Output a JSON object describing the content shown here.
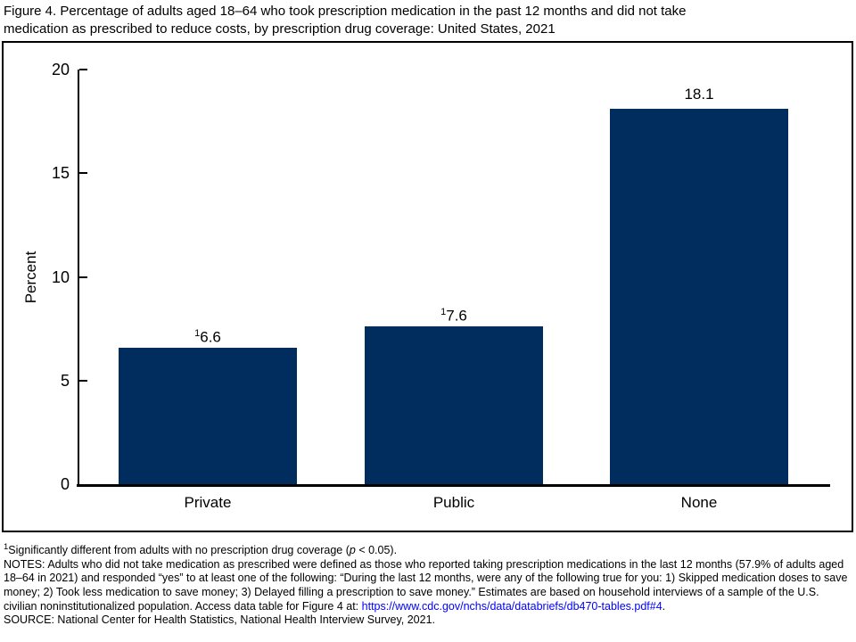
{
  "title": {
    "line1": "Figure 4. Percentage of adults aged 18–64 who took prescription medication in the past 12 months and did not take",
    "line2": "medication as prescribed to reduce costs, by prescription drug coverage: United States, 2021"
  },
  "chart_data": {
    "type": "bar",
    "title": "Figure 4. Percentage of adults aged 18–64 who took prescription medication in the past 12 months and did not take medication as prescribed to reduce costs, by prescription drug coverage: United States, 2021",
    "categories": [
      "Private",
      "Public",
      "None"
    ],
    "values": [
      6.6,
      7.6,
      18.1
    ],
    "value_labels": [
      {
        "sup": "1",
        "text": "6.6"
      },
      {
        "sup": "1",
        "text": "7.6"
      },
      {
        "sup": "",
        "text": "18.1"
      }
    ],
    "xlabel": "",
    "ylabel": "Percent",
    "ylim": [
      0,
      20
    ],
    "yticks": [
      0,
      5,
      10,
      15,
      20
    ],
    "bar_color": "#002c5e",
    "grid": false,
    "legend": null
  },
  "footnotes": {
    "sig_sup": "1",
    "sig_pre": "Significantly different from adults with no prescription drug coverage (",
    "sig_italic": "p",
    "sig_post": " < 0.05).",
    "notes": "NOTES: Adults who did not take medication as prescribed were defined as those who reported taking prescription medications in the last 12 months (57.9% of adults aged 18–64 in 2021) and responded “yes” to at least one of the following: “During the last 12 months, were any of the following true for you: 1) Skipped medication doses to save money; 2) Took less medication to save money; 3) Delayed filling a prescription to save money.” Estimates are based on household interviews of a sample of the U.S. civilian noninstitutionalized population. Access data table for Figure 4 at: ",
    "link": "https://www.cdc.gov/nchs/data/databriefs/db470-tables.pdf#4",
    "link_suffix": ".",
    "source": "SOURCE: National Center for Health Statistics, National Health Interview Survey, 2021."
  }
}
